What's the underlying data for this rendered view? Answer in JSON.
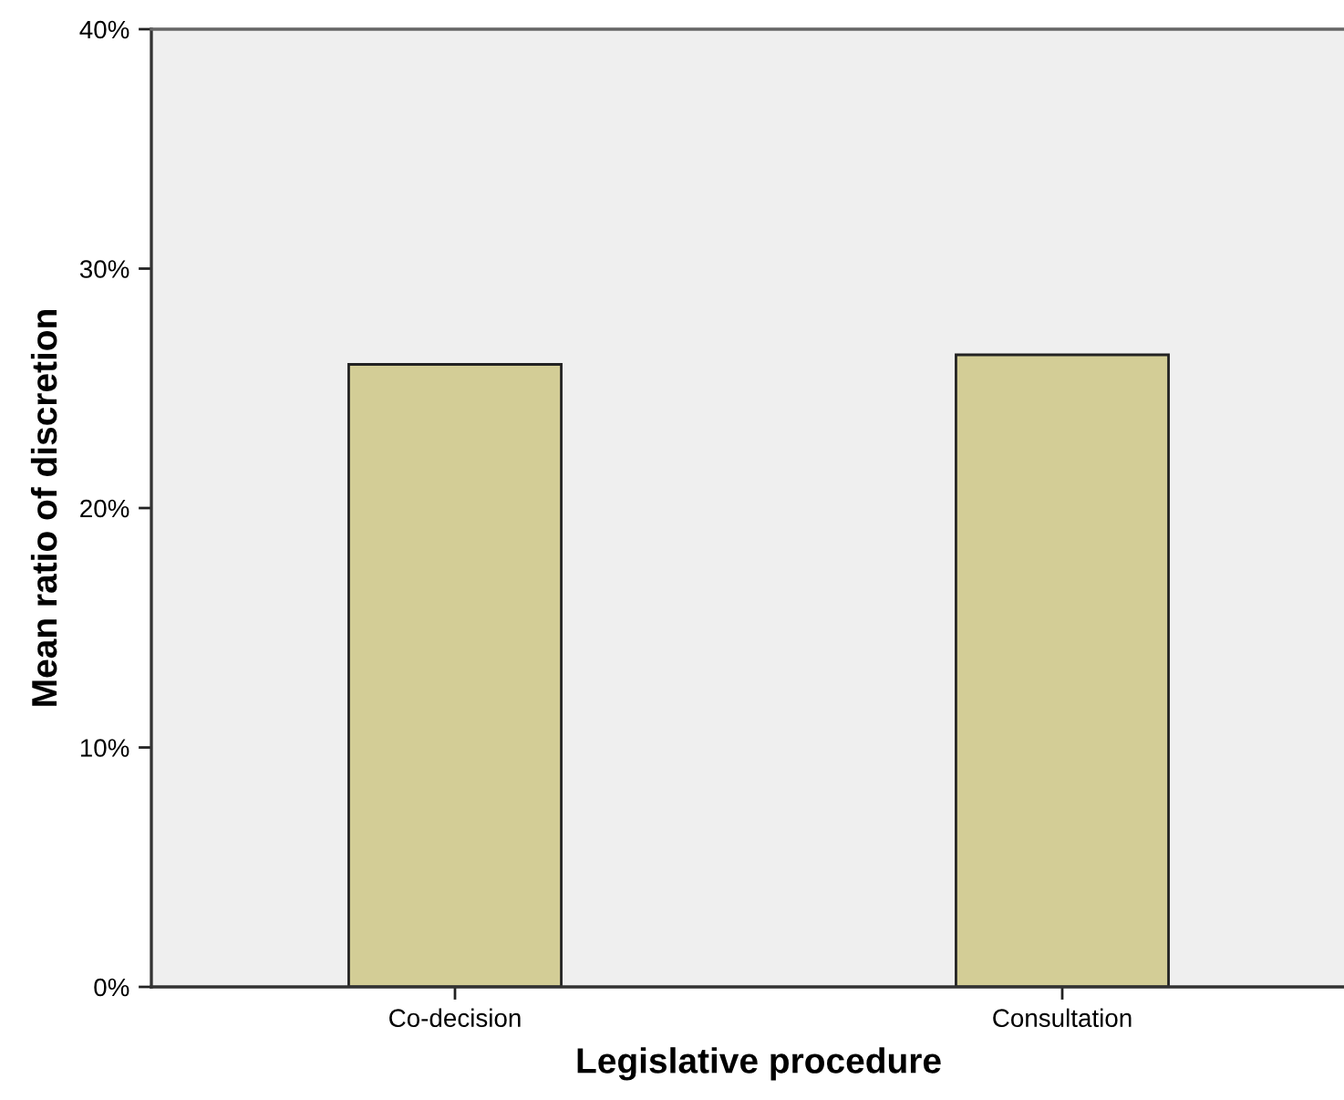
{
  "chart_data": {
    "type": "bar",
    "xlabel": "Legislative procedure",
    "ylabel": "Mean ratio of discretion",
    "categories": [
      "Co-decision",
      "Consultation"
    ],
    "values": [
      26.0,
      26.4
    ],
    "color": "#d3cd96",
    "ylim": [
      0,
      40
    ],
    "yticks": [
      {
        "value": 0,
        "label": "0%"
      },
      {
        "value": 10,
        "label": "10%"
      },
      {
        "value": 20,
        "label": "20%"
      },
      {
        "value": 30,
        "label": "30%"
      },
      {
        "value": 40,
        "label": "40%"
      }
    ],
    "grid": false
  }
}
